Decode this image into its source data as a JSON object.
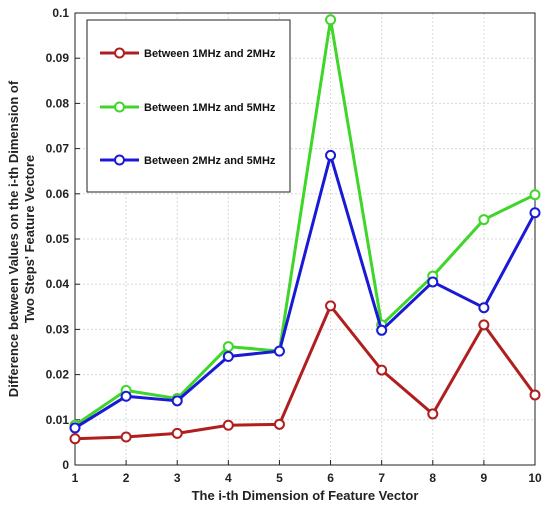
{
  "chart_data": {
    "type": "line",
    "title": "",
    "xlabel": "The i-th Dimension of Feature Vector",
    "ylabel_lines": [
      "Difference between Values on the i-th Dimension of",
      "Two Steps' Feature Vectore"
    ],
    "x": [
      1,
      2,
      3,
      4,
      5,
      6,
      7,
      8,
      9,
      10
    ],
    "xlim": [
      1,
      10
    ],
    "ylim": [
      0,
      0.1
    ],
    "xticks": [
      "1",
      "2",
      "3",
      "4",
      "5",
      "6",
      "7",
      "8",
      "9",
      "10"
    ],
    "yticks": [
      "0",
      "0.01",
      "0.02",
      "0.03",
      "0.04",
      "0.05",
      "0.06",
      "0.07",
      "0.08",
      "0.09",
      "0.1"
    ],
    "grid": true,
    "legend_position": "top-left",
    "series": [
      {
        "name": "Between 1MHz and 2MHz",
        "color": "#b01f1f",
        "values": [
          0.0058,
          0.0062,
          0.007,
          0.0088,
          0.009,
          0.0352,
          0.021,
          0.0113,
          0.031,
          0.0155
        ]
      },
      {
        "name": "Between 1MHz and 5MHz",
        "color": "#3fd62a",
        "values": [
          0.0088,
          0.0165,
          0.0147,
          0.0262,
          0.0252,
          0.0985,
          0.031,
          0.0418,
          0.0543,
          0.0598
        ]
      },
      {
        "name": "Between 2MHz and 5MHz",
        "color": "#1a1ad6",
        "values": [
          0.0082,
          0.0152,
          0.0142,
          0.024,
          0.0252,
          0.0685,
          0.0298,
          0.0405,
          0.0348,
          0.0558
        ]
      }
    ]
  }
}
